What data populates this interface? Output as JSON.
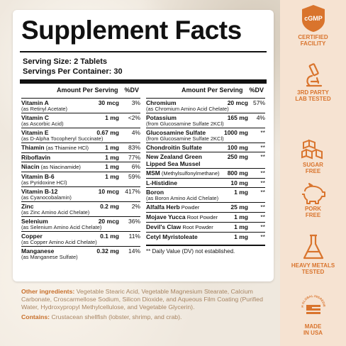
{
  "panel": {
    "title": "Supplement Facts",
    "serving_size": "Serving Size: 2 Tablets",
    "servings_per_container": "Servings Per Container: 30",
    "left_headers": {
      "amount": "Amount Per Serving",
      "dv": "%DV"
    },
    "right_headers": {
      "amount": "Amount Per Serving",
      "dv": "%DV"
    },
    "left_rows": [
      {
        "name": "Vitamin A",
        "sub": "(as Retinyl Acetate)",
        "amount": "30 mcg",
        "dv": "3%"
      },
      {
        "name": "Vitamin C",
        "sub": "(as Ascorbic Acid)",
        "amount": "1 mg",
        "dv": "<2%"
      },
      {
        "name": "Vitamin E",
        "sub": "(as D-Alpha Tocopheryl Succinate)",
        "amount": "0.67 mg",
        "dv": "4%"
      },
      {
        "name": "Thiamin",
        "inline": " (as Thiamine HCl)",
        "amount": "1 mg",
        "dv": "83%"
      },
      {
        "name": "Riboflavin",
        "amount": "1 mg",
        "dv": "77%"
      },
      {
        "name": "Niacin",
        "inline": " (as Niacinamide)",
        "amount": "1 mg",
        "dv": "6%"
      },
      {
        "name": "Vitamin B-6",
        "sub": "(as Pyridoxine HCl)",
        "amount": "1 mg",
        "dv": "59%"
      },
      {
        "name": "Vitamin B-12",
        "sub": "(as Cyanocobalamin)",
        "amount": "10 mcg",
        "dv": "417%"
      },
      {
        "name": "Zinc",
        "sub": "(as Zinc Amino Acid Chelate)",
        "amount": "0.2 mg",
        "dv": "2%"
      },
      {
        "name": "Selenium",
        "sub": "(as Selenium Amino Acid Chelate)",
        "amount": "20 mcg",
        "dv": "36%"
      },
      {
        "name": "Copper",
        "sub": "(as Copper Amino Acid Chelate)",
        "amount": "0.1 mg",
        "dv": "11%"
      },
      {
        "name": "Manganese",
        "sub": "(as Manganese Sulfate)",
        "amount": "0.32 mg",
        "dv": "14%"
      }
    ],
    "right_rows": [
      {
        "name": "Chromium",
        "sub": "(as Chromium Amino Acid Chelate)",
        "amount": "20 mcg",
        "dv": "57%"
      },
      {
        "name": "Potassium",
        "sub": "(from Glucosamine Sulfate 2KCl)",
        "amount": "165 mg",
        "dv": "4%"
      },
      {
        "name": "Glucosamine Sulfate",
        "sub": "(from Glucosamine Sulfate 2KCl)",
        "amount": "1000 mg",
        "dv": "**"
      },
      {
        "name": "Chondroitin Sulfate",
        "amount": "100 mg",
        "dv": "**"
      },
      {
        "name": "New Zealand Green",
        "sub2": "Lipped Sea Mussel",
        "amount": "250 mg",
        "dv": "**"
      },
      {
        "name": "MSM",
        "inline": " (Methylsulfonylmethane)",
        "amount": "800 mg",
        "dv": "**"
      },
      {
        "name": "L-Histidine",
        "amount": "10 mg",
        "dv": "**"
      },
      {
        "name": "Boron",
        "sub": "(as Boron Amino Acid Chelate)",
        "amount": "1 mg",
        "dv": "**"
      },
      {
        "name": "Alfalfa Herb",
        "inline": " Powder",
        "amount": "25 mg",
        "dv": "**"
      },
      {
        "name": "Mojave Yucca",
        "inline": " Root Powder",
        "amount": "1 mg",
        "dv": "**"
      },
      {
        "name": "Devil's Claw",
        "inline": " Root Powder",
        "amount": "1 mg",
        "dv": "**"
      },
      {
        "name": "Cetyl Myristoleate",
        "amount": "1 mg",
        "dv": "**"
      }
    ],
    "footnote": "** Daily Value (DV) not established."
  },
  "ingredients": {
    "other_label": "Other ingredients:",
    "other_text": " Vegetable Stearic Acid, Vegetable Magnesium Stearate, Calcium Carbonate, Croscarmellose Sodium, Silicon Dioxide, and Aqueous Film Coating (Purified Water, Hydroxypropyl Methylcellulose, and Vegetable Glycerin).",
    "contains_label": "Contains:",
    "contains_text": " Crustacean shellfish (lobster, shrimp, and crab)."
  },
  "badges": {
    "cgmp_text": "cGMP",
    "cgmp": "CERTIFIED\nFACILITY",
    "lab": "3RD PARTY\nLAB TESTED",
    "sugar": "SUGAR\nFREE",
    "pork": "PORK\nFREE",
    "metals": "HEAVY METALS\nTESTED",
    "usa_ring": "WITH GLOBAL INGREDIENTS",
    "usa": "MADE\nIN USA"
  },
  "colors": {
    "accent": "#d9742d",
    "ingredient_text": "#a78563",
    "panel_bg": "#ffffff",
    "side_bg": "#f6e3d2"
  },
  "icons": [
    "cgmp-shield-icon",
    "microscope-icon",
    "sugar-cubes-icon",
    "pig-icon",
    "flask-icon",
    "usa-flag-globe-icon"
  ]
}
